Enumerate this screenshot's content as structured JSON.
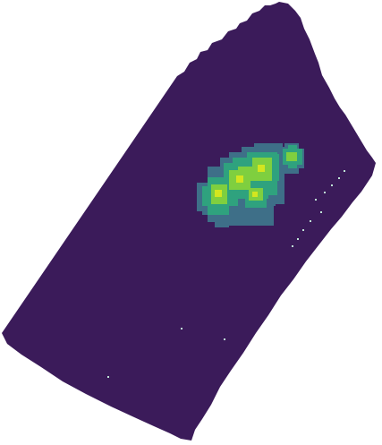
{
  "image": {
    "type": "heatmap-raster",
    "colormap": "viridis",
    "colors": {
      "background": "#ffffff",
      "base": "#3b1b5a",
      "low": "#3e6f88",
      "mid": "#2fa27e",
      "high": "#7fcf3f",
      "peak": "#d3e61f"
    }
  }
}
